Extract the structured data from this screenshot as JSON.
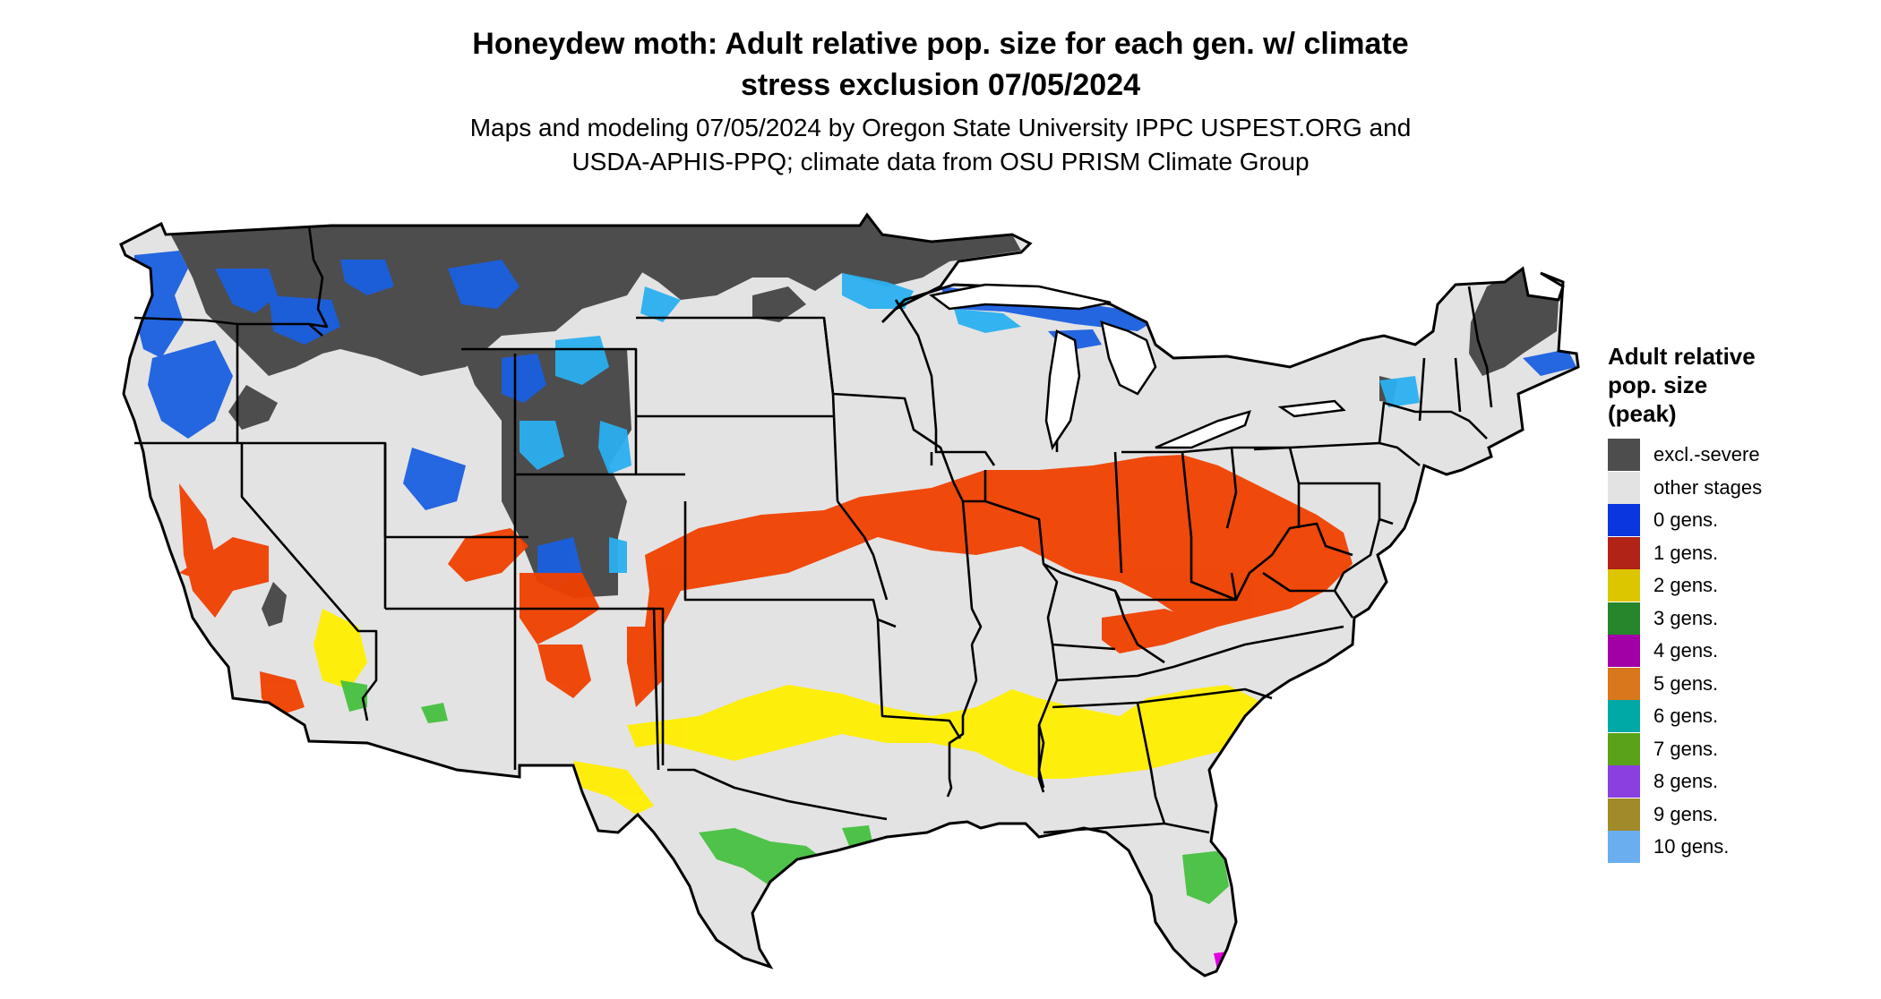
{
  "title": {
    "line1": "Honeydew moth: Adult relative pop. size for each gen. w/ climate",
    "line2": "stress exclusion 07/05/2024"
  },
  "subtitle": {
    "line1": "Maps and modeling 07/05/2024 by Oregon State University IPPC USPEST.ORG and",
    "line2": "USDA-APHIS-PPQ; climate data from OSU PRISM Climate Group"
  },
  "legend": {
    "title_line1": "Adult relative",
    "title_line2": "pop. size",
    "title_line3": "(peak)",
    "items": [
      {
        "label": "excl.-severe",
        "color": "#4d4d4d"
      },
      {
        "label": "other stages",
        "color": "#e3e3e3"
      },
      {
        "label": "0 gens.",
        "color": "#0a36e0"
      },
      {
        "label": "1 gens.",
        "color": "#b02316"
      },
      {
        "label": "2 gens.",
        "color": "#dcc600"
      },
      {
        "label": "3 gens.",
        "color": "#25862b"
      },
      {
        "label": "4 gens.",
        "color": "#a000a6"
      },
      {
        "label": "5 gens.",
        "color": "#d8771c"
      },
      {
        "label": "6 gens.",
        "color": "#00a9a5"
      },
      {
        "label": "7 gens.",
        "color": "#5aa21a"
      },
      {
        "label": "8 gens.",
        "color": "#8b3fe0"
      },
      {
        "label": "9 gens.",
        "color": "#a08a2a"
      },
      {
        "label": "10 gens.",
        "color": "#6aaef0"
      }
    ]
  },
  "map_colors": {
    "land": "#e3e3e3",
    "excluded": "#4d4d4d",
    "zero_gens_dark": "#1a5fe0",
    "zero_gens_light": "#2ab0f0",
    "one_gen": "#f04000",
    "two_gens": "#ffee00",
    "three_gens": "#46c040",
    "four_gens": "#e000e0",
    "border": "#000000"
  }
}
